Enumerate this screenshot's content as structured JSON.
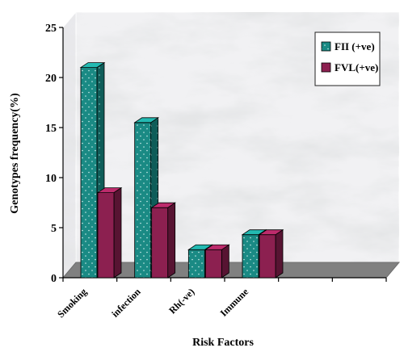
{
  "chart_data": {
    "type": "bar",
    "categories": [
      "Smoking",
      "infection",
      "Rh(-ve)",
      "Immune"
    ],
    "series": [
      {
        "name": "FII (+ve)",
        "values": [
          21,
          15.5,
          2.8,
          4.3
        ],
        "color": "#1a8a84"
      },
      {
        "name": "FVL(+ve)",
        "values": [
          8.5,
          7,
          2.8,
          4.3
        ],
        "color": "#8c2050"
      }
    ],
    "xlabel": "Risk Factors",
    "ylabel": "Genotypes frequency(%)",
    "ylim": [
      0,
      25
    ],
    "yticks": [
      0,
      5,
      10,
      15,
      20,
      25
    ],
    "slots": 6,
    "style": "3d",
    "background": "marble",
    "floor_color": "#808080",
    "legend_position": "top-right",
    "grid": false
  }
}
